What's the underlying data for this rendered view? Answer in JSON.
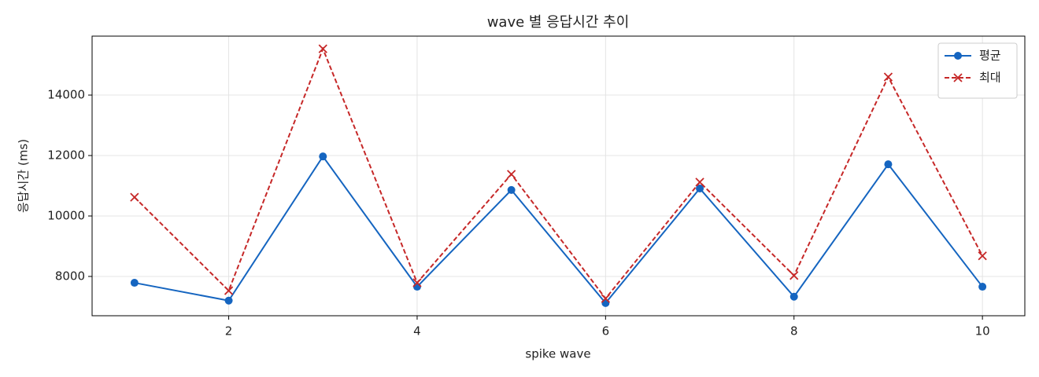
{
  "chart_data": {
    "type": "line",
    "title": "wave 별 응답시간 추이",
    "x_label": "spike wave",
    "y_label": "응답시간 (ms)",
    "x": [
      1,
      2,
      3,
      4,
      5,
      6,
      7,
      8,
      9,
      10
    ],
    "series": [
      {
        "name": "평균",
        "color": "#1565c0",
        "marker": "circle",
        "line_style": "solid",
        "values": [
          7790,
          7200,
          11970,
          7660,
          10860,
          7120,
          10910,
          7330,
          11710,
          7660
        ]
      },
      {
        "name": "최대",
        "color": "#c62828",
        "marker": "x",
        "line_style": "dashed",
        "values": [
          10620,
          7530,
          15530,
          7790,
          11380,
          7270,
          11120,
          8030,
          14600,
          8680
        ]
      }
    ],
    "xlim": [
      0.55,
      10.45
    ],
    "xticks": [
      2,
      4,
      6,
      8,
      10
    ],
    "ylim": [
      6700,
      15950
    ],
    "yticks": [
      8000,
      10000,
      12000,
      14000
    ],
    "grid": true,
    "legend": "upper right"
  }
}
